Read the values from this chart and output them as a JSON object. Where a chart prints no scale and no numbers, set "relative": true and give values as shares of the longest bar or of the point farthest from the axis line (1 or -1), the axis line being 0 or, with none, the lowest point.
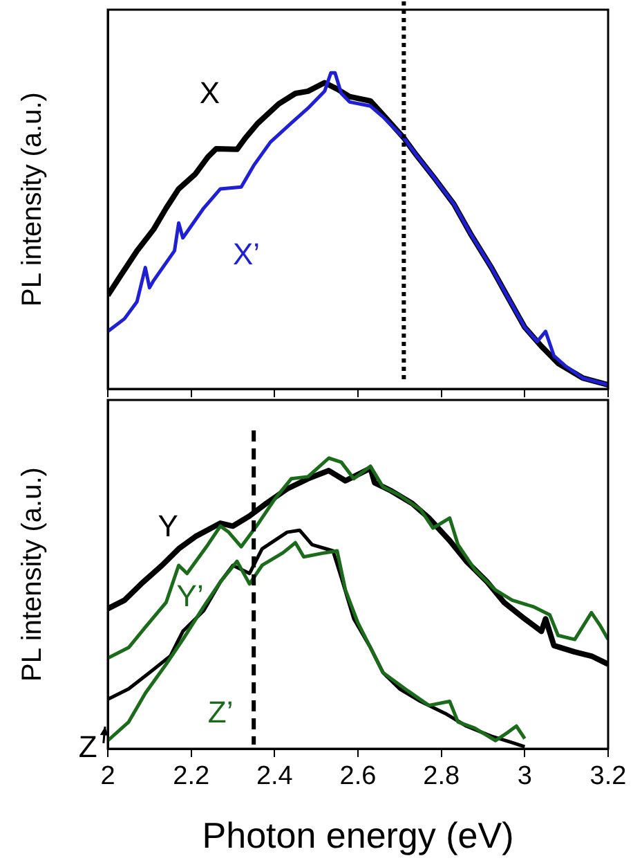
{
  "chart_data": [
    {
      "type": "line",
      "ylabel": "PL intensity (a.u.)",
      "relative": true,
      "xlim": [
        2,
        3.2
      ],
      "xticks": [
        2,
        2.2,
        2.4,
        2.6,
        2.8,
        3,
        3.2
      ],
      "tick_labels": false,
      "ref_lines": [
        {
          "axis": "x",
          "value": 2.71,
          "color": "#000000",
          "line_style": "dotted"
        }
      ],
      "series": [
        {
          "name": "X",
          "color": "#000000",
          "x": [
            2.0,
            2.03,
            2.07,
            2.11,
            2.14,
            2.17,
            2.21,
            2.24,
            2.26,
            2.31,
            2.33,
            2.36,
            2.41,
            2.45,
            2.48,
            2.52,
            2.55,
            2.58,
            2.63,
            2.66,
            2.71,
            2.74,
            2.78,
            2.83,
            2.87,
            2.92,
            2.96,
            3.0,
            3.04,
            3.08,
            3.14,
            3.2
          ],
          "values": [
            0.296,
            0.357,
            0.437,
            0.505,
            0.572,
            0.633,
            0.68,
            0.734,
            0.76,
            0.758,
            0.794,
            0.841,
            0.902,
            0.935,
            0.942,
            0.969,
            0.949,
            0.925,
            0.911,
            0.868,
            0.794,
            0.74,
            0.673,
            0.585,
            0.491,
            0.384,
            0.289,
            0.195,
            0.135,
            0.081,
            0.034,
            0.013
          ]
        },
        {
          "name": "X’",
          "color": "#1f1fd6",
          "x": [
            2.0,
            2.04,
            2.07,
            2.09,
            2.1,
            2.11,
            2.16,
            2.17,
            2.18,
            2.23,
            2.27,
            2.32,
            2.35,
            2.39,
            2.44,
            2.48,
            2.52,
            2.535,
            2.545,
            2.56,
            2.58,
            2.63,
            2.66,
            2.71,
            2.74,
            2.78,
            2.83,
            2.87,
            2.92,
            2.96,
            3.0,
            3.03,
            3.05,
            3.07,
            3.1,
            3.14,
            3.2
          ],
          "values": [
            0.182,
            0.222,
            0.276,
            0.384,
            0.32,
            0.343,
            0.437,
            0.525,
            0.478,
            0.572,
            0.633,
            0.639,
            0.707,
            0.781,
            0.841,
            0.888,
            0.942,
            1.0,
            1.0,
            0.935,
            0.908,
            0.895,
            0.861,
            0.794,
            0.74,
            0.673,
            0.585,
            0.491,
            0.384,
            0.289,
            0.195,
            0.15,
            0.182,
            0.105,
            0.07,
            0.034,
            0.013
          ]
        }
      ]
    },
    {
      "type": "line",
      "ylabel": "PL intensity (a.u.)",
      "xlabel": "Photon energy (eV)",
      "relative": true,
      "xlim": [
        2,
        3.2
      ],
      "xticks": [
        2,
        2.2,
        2.4,
        2.6,
        2.8,
        3,
        3.2
      ],
      "tick_labels": "x",
      "ref_lines": [
        {
          "axis": "x",
          "value": 2.35,
          "color": "#000000",
          "line_style": "dashed"
        }
      ],
      "series": [
        {
          "name": "Y",
          "color": "#000000",
          "x": [
            2.0,
            2.04,
            2.08,
            2.13,
            2.17,
            2.21,
            2.27,
            2.3,
            2.34,
            2.38,
            2.43,
            2.48,
            2.53,
            2.57,
            2.63,
            2.64,
            2.68,
            2.73,
            2.77,
            2.82,
            2.86,
            2.91,
            2.95,
            3.0,
            3.04,
            3.05,
            3.07,
            3.12,
            3.16,
            3.2
          ],
          "values": [
            0.482,
            0.511,
            0.567,
            0.631,
            0.688,
            0.73,
            0.776,
            0.766,
            0.801,
            0.844,
            0.894,
            0.929,
            0.957,
            0.922,
            0.965,
            0.915,
            0.887,
            0.844,
            0.794,
            0.716,
            0.645,
            0.574,
            0.504,
            0.447,
            0.404,
            0.447,
            0.355,
            0.333,
            0.319,
            0.291
          ]
        },
        {
          "name": "Y’",
          "color": "#1a6b1a",
          "x": [
            2.0,
            2.05,
            2.09,
            2.14,
            2.17,
            2.19,
            2.24,
            2.27,
            2.29,
            2.32,
            2.36,
            2.4,
            2.44,
            2.48,
            2.53,
            2.56,
            2.59,
            2.63,
            2.66,
            2.7,
            2.75,
            2.78,
            2.82,
            2.84,
            2.88,
            2.93,
            2.97,
            3.02,
            3.06,
            3.08,
            3.12,
            3.16,
            3.18,
            3.2
          ],
          "values": [
            0.312,
            0.348,
            0.418,
            0.504,
            0.631,
            0.603,
            0.702,
            0.766,
            0.745,
            0.695,
            0.773,
            0.858,
            0.929,
            0.936,
            1.0,
            0.986,
            0.929,
            0.972,
            0.901,
            0.872,
            0.823,
            0.759,
            0.794,
            0.702,
            0.617,
            0.546,
            0.511,
            0.489,
            0.461,
            0.39,
            0.376,
            0.468,
            0.426,
            0.376
          ]
        },
        {
          "name": "Z",
          "color": "#000000",
          "x": [
            2.0,
            2.05,
            2.1,
            2.15,
            2.18,
            2.23,
            2.27,
            2.3,
            2.34,
            2.37,
            2.43,
            2.46,
            2.49,
            2.54,
            2.56,
            2.59,
            2.63,
            2.66,
            2.7,
            2.75,
            2.81,
            2.86,
            2.92,
            2.97,
            3.0
          ],
          "values": [
            0.17,
            0.206,
            0.262,
            0.319,
            0.404,
            0.475,
            0.574,
            0.631,
            0.603,
            0.688,
            0.745,
            0.752,
            0.702,
            0.681,
            0.589,
            0.447,
            0.348,
            0.262,
            0.206,
            0.163,
            0.121,
            0.078,
            0.043,
            0.021,
            0.007
          ]
        },
        {
          "name": "Z’",
          "color": "#1a6b1a",
          "x": [
            2.0,
            2.05,
            2.09,
            2.14,
            2.18,
            2.23,
            2.27,
            2.31,
            2.34,
            2.37,
            2.42,
            2.45,
            2.47,
            2.52,
            2.55,
            2.57,
            2.6,
            2.63,
            2.66,
            2.72,
            2.77,
            2.82,
            2.84,
            2.88,
            2.93,
            2.96,
            2.98,
            3.0
          ],
          "values": [
            0.028,
            0.092,
            0.191,
            0.291,
            0.376,
            0.489,
            0.574,
            0.645,
            0.567,
            0.631,
            0.674,
            0.709,
            0.66,
            0.674,
            0.681,
            0.546,
            0.433,
            0.348,
            0.262,
            0.199,
            0.149,
            0.163,
            0.092,
            0.071,
            0.028,
            0.057,
            0.078,
            0.035
          ]
        }
      ]
    }
  ]
}
